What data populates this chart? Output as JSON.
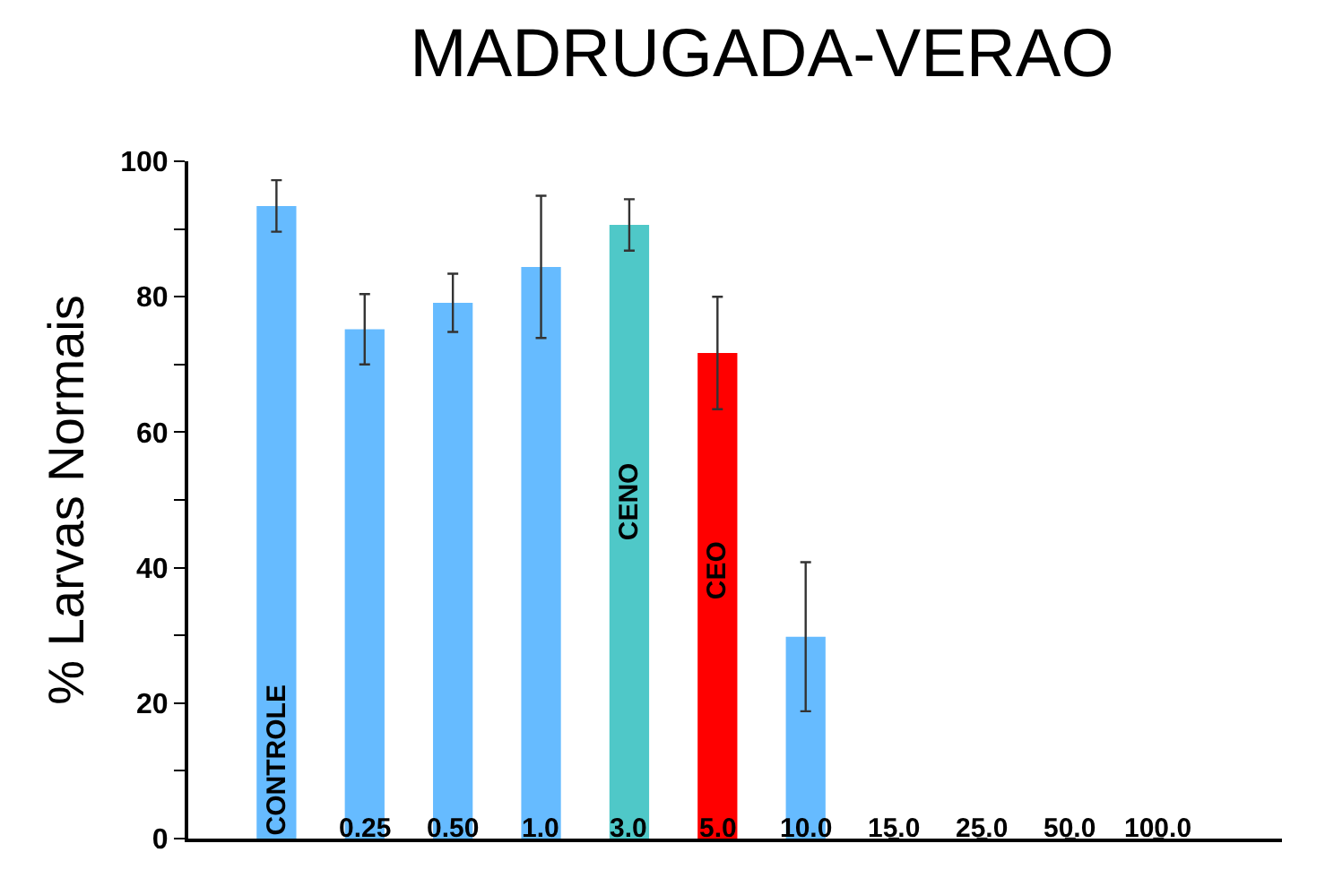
{
  "chart_data": {
    "type": "bar",
    "title": "MADRUGADA-VERAO",
    "ylabel": "% Larvas Normais",
    "categories": [
      "CONTROLE",
      "0.25",
      "0.50",
      "1.0",
      "3.0",
      "5.0",
      "10.0",
      "15.0",
      "25.0",
      "50.0",
      "100.0"
    ],
    "values": [
      93.4,
      75.2,
      79.1,
      84.4,
      90.6,
      71.7,
      29.8,
      0,
      0,
      0,
      0
    ],
    "errors": [
      3.8,
      5.2,
      4.3,
      10.5,
      3.8,
      8.3,
      11,
      null,
      null,
      null,
      null
    ],
    "colors": [
      "#66bbff",
      "#66bbff",
      "#66bbff",
      "#66bbff",
      "#4fc8c8",
      "#ff0000",
      "#66bbff",
      "#66bbff",
      "#66bbff",
      "#66bbff",
      "#66bbff"
    ],
    "annotations": [
      "CENO",
      "CEO"
    ],
    "ylim": [
      0,
      100
    ],
    "yticks": [
      0,
      {
        "value": 10,
        "label": null
      },
      20,
      {
        "value": 30,
        "label": null
      },
      40,
      {
        "value": 50,
        "label": null
      },
      60,
      {
        "value": 70,
        "label": null
      },
      80,
      {
        "value": 90,
        "label": null
      },
      100
    ],
    "tick_labels": "y"
  }
}
